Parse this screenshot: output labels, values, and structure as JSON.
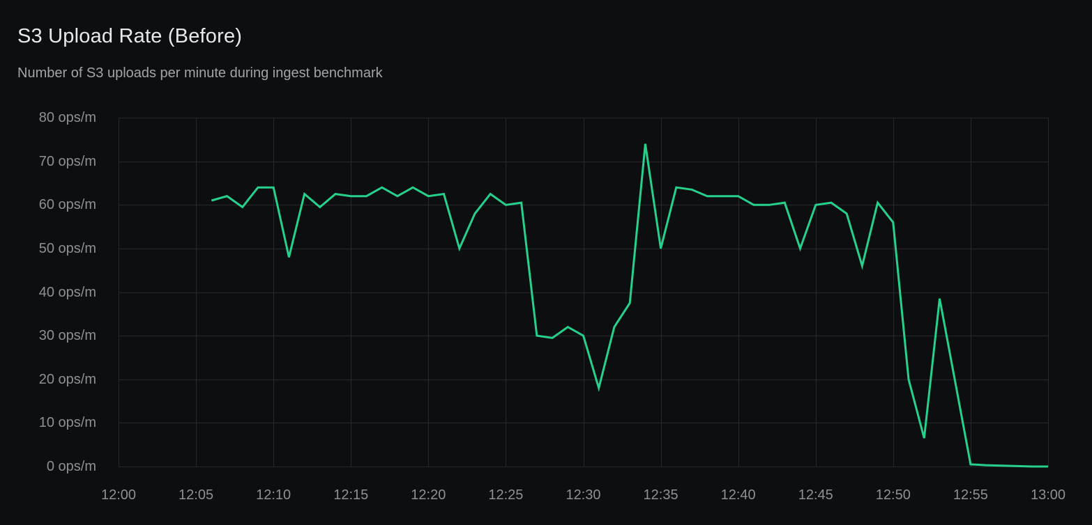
{
  "panel": {
    "title": "S3 Upload Rate (Before)",
    "subtitle": "Number of S3 uploads per minute during ingest benchmark"
  },
  "chart_data": {
    "type": "line",
    "title": "S3 Upload Rate (Before)",
    "subtitle": "Number of S3 uploads per minute during ingest benchmark",
    "unit": "ops/m",
    "line_color": "#26d18c",
    "grid_color": "#26282c",
    "background_color": "#0d0e10",
    "label_color": "#8e9095",
    "grid": true,
    "legend_position": "none",
    "ylim": [
      0,
      80
    ],
    "x_range": [
      "12:00",
      "13:00"
    ],
    "y_ticks": [
      {
        "value": 80,
        "label": "80 ops/m"
      },
      {
        "value": 70,
        "label": "70 ops/m"
      },
      {
        "value": 60,
        "label": "60 ops/m"
      },
      {
        "value": 50,
        "label": "50 ops/m"
      },
      {
        "value": 40,
        "label": "40 ops/m"
      },
      {
        "value": 30,
        "label": "30 ops/m"
      },
      {
        "value": 20,
        "label": "20 ops/m"
      },
      {
        "value": 10,
        "label": "10 ops/m"
      },
      {
        "value": 0,
        "label": "0 ops/m"
      }
    ],
    "x_ticks": [
      {
        "label": "12:00"
      },
      {
        "label": "12:05"
      },
      {
        "label": "12:10"
      },
      {
        "label": "12:15"
      },
      {
        "label": "12:20"
      },
      {
        "label": "12:25"
      },
      {
        "label": "12:30"
      },
      {
        "label": "12:35"
      },
      {
        "label": "12:40"
      },
      {
        "label": "12:45"
      },
      {
        "label": "12:50"
      },
      {
        "label": "12:55"
      },
      {
        "label": "13:00"
      }
    ],
    "x_times": [
      "12:06",
      "12:07",
      "12:08",
      "12:09",
      "12:10",
      "12:11",
      "12:12",
      "12:13",
      "12:14",
      "12:15",
      "12:16",
      "12:17",
      "12:18",
      "12:19",
      "12:20",
      "12:21",
      "12:22",
      "12:23",
      "12:24",
      "12:25",
      "12:26",
      "12:27",
      "12:28",
      "12:29",
      "12:30",
      "12:31",
      "12:32",
      "12:33",
      "12:34",
      "12:35",
      "12:36",
      "12:37",
      "12:38",
      "12:39",
      "12:40",
      "12:41",
      "12:42",
      "12:43",
      "12:44",
      "12:45",
      "12:46",
      "12:47",
      "12:48",
      "12:49",
      "12:50",
      "12:51",
      "12:52",
      "12:53",
      "12:54",
      "12:55",
      "12:56",
      "12:57",
      "12:58",
      "12:59",
      "13:00"
    ],
    "values": [
      61,
      62,
      59.5,
      64,
      64,
      48,
      62.5,
      59.5,
      62.5,
      62,
      62,
      64,
      62,
      64,
      62,
      62.5,
      50,
      58,
      62.5,
      60,
      60.5,
      30,
      29.5,
      32,
      30,
      18,
      32,
      37.5,
      74,
      50,
      64,
      63.5,
      62,
      62,
      62,
      60,
      60,
      60.5,
      50,
      60,
      60.5,
      58,
      46,
      60.5,
      56,
      20,
      6.5,
      38.5,
      19.5,
      0.5,
      0.3,
      0.2,
      0.1,
      0,
      0
    ]
  }
}
